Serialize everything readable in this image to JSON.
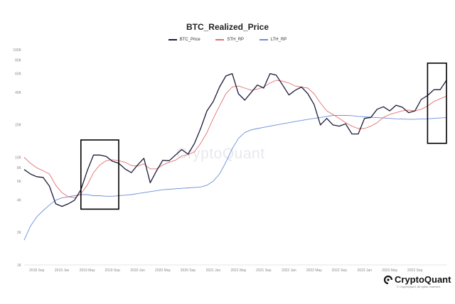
{
  "chart_data": {
    "type": "line",
    "title": "BTC_Realized_Price",
    "xlabel": "",
    "ylabel": "",
    "y_scale": "log",
    "ylim": [
      1000,
      100000
    ],
    "xlim": [
      "2018-07",
      "2024-02"
    ],
    "grid": false,
    "legend_position": "top-center",
    "y_ticks": [
      {
        "value": 1000,
        "label": "1K"
      },
      {
        "value": 2000,
        "label": "2K"
      },
      {
        "value": 4000,
        "label": "4K"
      },
      {
        "value": 6000,
        "label": "6K"
      },
      {
        "value": 8000,
        "label": "8K"
      },
      {
        "value": 10000,
        "label": "10K"
      },
      {
        "value": 20000,
        "label": "20K"
      },
      {
        "value": 40000,
        "label": "40K"
      },
      {
        "value": 60000,
        "label": "60K"
      },
      {
        "value": 80000,
        "label": "80K"
      },
      {
        "value": 100000,
        "label": "100K"
      }
    ],
    "x_ticks": [
      {
        "date": "2018-09",
        "label": "2018 Sep"
      },
      {
        "date": "2019-01",
        "label": "2019 Jan"
      },
      {
        "date": "2019-05",
        "label": "2019 May"
      },
      {
        "date": "2019-09",
        "label": "2019 Sep"
      },
      {
        "date": "2020-01",
        "label": "2020 Jan"
      },
      {
        "date": "2020-05",
        "label": "2020 May"
      },
      {
        "date": "2020-09",
        "label": "2020 Sep"
      },
      {
        "date": "2021-01",
        "label": "2021 Jan"
      },
      {
        "date": "2021-05",
        "label": "2021 May"
      },
      {
        "date": "2021-09",
        "label": "2021 Sep"
      },
      {
        "date": "2022-01",
        "label": "2022 Jan"
      },
      {
        "date": "2022-05",
        "label": "2022 May"
      },
      {
        "date": "2022-09",
        "label": "2022 Sep"
      },
      {
        "date": "2023-01",
        "label": "2023 Jan"
      },
      {
        "date": "2023-05",
        "label": "2023 May"
      },
      {
        "date": "2023-09",
        "label": "2023 Sep"
      }
    ],
    "series": [
      {
        "name": "BTC_Price",
        "color": "#1b1b3a",
        "points": [
          [
            "2018-07",
            7700
          ],
          [
            "2018-08",
            7000
          ],
          [
            "2018-09",
            6600
          ],
          [
            "2018-10",
            6500
          ],
          [
            "2018-11",
            5400
          ],
          [
            "2018-12",
            3700
          ],
          [
            "2019-01",
            3500
          ],
          [
            "2019-02",
            3700
          ],
          [
            "2019-03",
            4000
          ],
          [
            "2019-04",
            5000
          ],
          [
            "2019-05",
            7500
          ],
          [
            "2019-06",
            10500
          ],
          [
            "2019-07",
            10500
          ],
          [
            "2019-08",
            10200
          ],
          [
            "2019-09",
            9200
          ],
          [
            "2019-10",
            8800
          ],
          [
            "2019-11",
            7800
          ],
          [
            "2019-12",
            7200
          ],
          [
            "2020-01",
            8500
          ],
          [
            "2020-02",
            9800
          ],
          [
            "2020-03",
            5800
          ],
          [
            "2020-04",
            7500
          ],
          [
            "2020-05",
            9400
          ],
          [
            "2020-06",
            9300
          ],
          [
            "2020-07",
            10500
          ],
          [
            "2020-08",
            11800
          ],
          [
            "2020-09",
            10700
          ],
          [
            "2020-10",
            13400
          ],
          [
            "2020-11",
            18500
          ],
          [
            "2020-12",
            27000
          ],
          [
            "2021-01",
            33000
          ],
          [
            "2021-02",
            45000
          ],
          [
            "2021-03",
            57000
          ],
          [
            "2021-04",
            60000
          ],
          [
            "2021-05",
            39000
          ],
          [
            "2021-06",
            34000
          ],
          [
            "2021-07",
            40000
          ],
          [
            "2021-08",
            47000
          ],
          [
            "2021-09",
            44000
          ],
          [
            "2021-10",
            60000
          ],
          [
            "2021-11",
            58000
          ],
          [
            "2021-12",
            47000
          ],
          [
            "2022-01",
            38000
          ],
          [
            "2022-02",
            42000
          ],
          [
            "2022-03",
            45000
          ],
          [
            "2022-04",
            39000
          ],
          [
            "2022-05",
            31000
          ],
          [
            "2022-06",
            20000
          ],
          [
            "2022-07",
            23000
          ],
          [
            "2022-08",
            20000
          ],
          [
            "2022-09",
            19500
          ],
          [
            "2022-10",
            20500
          ],
          [
            "2022-11",
            16500
          ],
          [
            "2022-12",
            16500
          ],
          [
            "2023-01",
            23000
          ],
          [
            "2023-02",
            23500
          ],
          [
            "2023-03",
            28000
          ],
          [
            "2023-04",
            29500
          ],
          [
            "2023-05",
            27000
          ],
          [
            "2023-06",
            30500
          ],
          [
            "2023-07",
            29200
          ],
          [
            "2023-08",
            26000
          ],
          [
            "2023-09",
            27000
          ],
          [
            "2023-10",
            34500
          ],
          [
            "2023-11",
            37500
          ],
          [
            "2023-12",
            42500
          ],
          [
            "2024-01",
            42500
          ],
          [
            "2024-02",
            52000
          ]
        ]
      },
      {
        "name": "STH_RP",
        "color": "#e07070",
        "points": [
          [
            "2018-07",
            10000
          ],
          [
            "2018-08",
            8800
          ],
          [
            "2018-09",
            8000
          ],
          [
            "2018-10",
            7500
          ],
          [
            "2018-11",
            7000
          ],
          [
            "2018-12",
            5500
          ],
          [
            "2019-01",
            4700
          ],
          [
            "2019-02",
            4300
          ],
          [
            "2019-03",
            4200
          ],
          [
            "2019-04",
            4600
          ],
          [
            "2019-05",
            5500
          ],
          [
            "2019-06",
            7200
          ],
          [
            "2019-07",
            8500
          ],
          [
            "2019-08",
            9300
          ],
          [
            "2019-09",
            9500
          ],
          [
            "2019-10",
            9300
          ],
          [
            "2019-11",
            9000
          ],
          [
            "2019-12",
            8400
          ],
          [
            "2020-01",
            8300
          ],
          [
            "2020-02",
            8700
          ],
          [
            "2020-03",
            7800
          ],
          [
            "2020-04",
            7800
          ],
          [
            "2020-05",
            8500
          ],
          [
            "2020-06",
            9000
          ],
          [
            "2020-07",
            9400
          ],
          [
            "2020-08",
            10300
          ],
          [
            "2020-09",
            10600
          ],
          [
            "2020-10",
            11200
          ],
          [
            "2020-11",
            13500
          ],
          [
            "2020-12",
            17000
          ],
          [
            "2021-01",
            23000
          ],
          [
            "2021-02",
            30000
          ],
          [
            "2021-03",
            39000
          ],
          [
            "2021-04",
            45000
          ],
          [
            "2021-05",
            46000
          ],
          [
            "2021-06",
            44000
          ],
          [
            "2021-07",
            42000
          ],
          [
            "2021-08",
            43000
          ],
          [
            "2021-09",
            45000
          ],
          [
            "2021-10",
            49000
          ],
          [
            "2021-11",
            52000
          ],
          [
            "2021-12",
            51000
          ],
          [
            "2022-01",
            49000
          ],
          [
            "2022-02",
            46000
          ],
          [
            "2022-03",
            45000
          ],
          [
            "2022-04",
            44000
          ],
          [
            "2022-05",
            39000
          ],
          [
            "2022-06",
            32000
          ],
          [
            "2022-07",
            27000
          ],
          [
            "2022-08",
            25000
          ],
          [
            "2022-09",
            23000
          ],
          [
            "2022-10",
            21000
          ],
          [
            "2022-11",
            19500
          ],
          [
            "2022-12",
            18500
          ],
          [
            "2023-01",
            18500
          ],
          [
            "2023-02",
            19500
          ],
          [
            "2023-03",
            21000
          ],
          [
            "2023-04",
            23500
          ],
          [
            "2023-05",
            25000
          ],
          [
            "2023-06",
            26000
          ],
          [
            "2023-07",
            27000
          ],
          [
            "2023-08",
            27500
          ],
          [
            "2023-09",
            27000
          ],
          [
            "2023-10",
            28000
          ],
          [
            "2023-11",
            30000
          ],
          [
            "2023-12",
            33000
          ],
          [
            "2024-01",
            35000
          ],
          [
            "2024-02",
            37000
          ]
        ]
      },
      {
        "name": "LTH_RP",
        "color": "#6a8fd8",
        "points": [
          [
            "2018-07",
            1700
          ],
          [
            "2018-08",
            2300
          ],
          [
            "2018-09",
            2800
          ],
          [
            "2018-10",
            3200
          ],
          [
            "2018-11",
            3600
          ],
          [
            "2018-12",
            4000
          ],
          [
            "2019-01",
            4200
          ],
          [
            "2019-02",
            4300
          ],
          [
            "2019-03",
            4400
          ],
          [
            "2019-04",
            4500
          ],
          [
            "2019-05",
            4500
          ],
          [
            "2019-06",
            4400
          ],
          [
            "2019-07",
            4400
          ],
          [
            "2019-08",
            4350
          ],
          [
            "2019-09",
            4350
          ],
          [
            "2019-10",
            4400
          ],
          [
            "2019-11",
            4450
          ],
          [
            "2019-12",
            4500
          ],
          [
            "2020-01",
            4600
          ],
          [
            "2020-02",
            4700
          ],
          [
            "2020-03",
            4800
          ],
          [
            "2020-04",
            4900
          ],
          [
            "2020-05",
            5000
          ],
          [
            "2020-06",
            5050
          ],
          [
            "2020-07",
            5100
          ],
          [
            "2020-08",
            5150
          ],
          [
            "2020-09",
            5200
          ],
          [
            "2020-10",
            5250
          ],
          [
            "2020-11",
            5300
          ],
          [
            "2020-12",
            5500
          ],
          [
            "2021-01",
            6000
          ],
          [
            "2021-02",
            7000
          ],
          [
            "2021-03",
            9000
          ],
          [
            "2021-04",
            12000
          ],
          [
            "2021-05",
            15000
          ],
          [
            "2021-06",
            17000
          ],
          [
            "2021-07",
            18000
          ],
          [
            "2021-08",
            18500
          ],
          [
            "2021-09",
            19000
          ],
          [
            "2021-10",
            19500
          ],
          [
            "2021-11",
            20000
          ],
          [
            "2021-12",
            20500
          ],
          [
            "2022-01",
            21000
          ],
          [
            "2022-02",
            21500
          ],
          [
            "2022-03",
            22000
          ],
          [
            "2022-04",
            22500
          ],
          [
            "2022-05",
            23000
          ],
          [
            "2022-06",
            23500
          ],
          [
            "2022-07",
            24000
          ],
          [
            "2022-08",
            24500
          ],
          [
            "2022-09",
            24500
          ],
          [
            "2022-10",
            24500
          ],
          [
            "2022-11",
            24400
          ],
          [
            "2022-12",
            24000
          ],
          [
            "2023-01",
            23800
          ],
          [
            "2023-02",
            23600
          ],
          [
            "2023-03",
            23400
          ],
          [
            "2023-04",
            23200
          ],
          [
            "2023-05",
            23000
          ],
          [
            "2023-06",
            22800
          ],
          [
            "2023-07",
            22700
          ],
          [
            "2023-08",
            22600
          ],
          [
            "2023-09",
            22600
          ],
          [
            "2023-10",
            22700
          ],
          [
            "2023-11",
            22800
          ],
          [
            "2023-12",
            23000
          ],
          [
            "2024-01",
            23200
          ],
          [
            "2024-02",
            23400
          ]
        ]
      }
    ],
    "highlight_boxes": [
      {
        "x_start": "2019-04",
        "x_end": "2019-10",
        "y_low": 3300,
        "y_high": 14500
      },
      {
        "x_start": "2023-11",
        "x_end": "2024-02",
        "y_low": 13500,
        "y_high": 75000
      }
    ]
  },
  "watermark": "CryptoQuant",
  "brand": {
    "name": "CryptoQuant",
    "copyright": "© CryptoQuant. All rights reserved."
  }
}
